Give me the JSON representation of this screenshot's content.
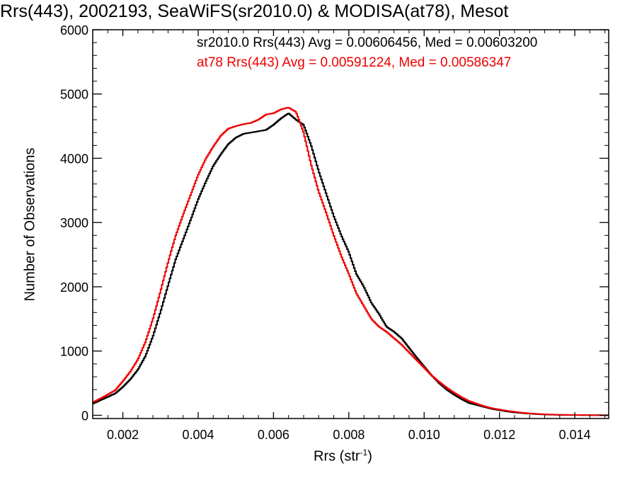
{
  "chart_data": {
    "type": "line",
    "title": "Rrs(443), 2002193, SeaWiFS(sr2010.0) & MODISA(at78), Mesot",
    "xlabel_main": "Rrs (str",
    "xlabel_sup": "-1",
    "xlabel_close": ")",
    "ylabel": "Number of Observations",
    "xlim": [
      0.0012,
      0.0149
    ],
    "ylim": [
      -50,
      6000
    ],
    "x_ticks": [
      0.002,
      0.004,
      0.006,
      0.008,
      0.01,
      0.012,
      0.014
    ],
    "x_tick_labels": [
      "0.002",
      "0.004",
      "0.006",
      "0.008",
      "0.010",
      "0.012",
      "0.014"
    ],
    "y_ticks": [
      0,
      1000,
      2000,
      3000,
      4000,
      5000,
      6000
    ],
    "y_tick_labels": [
      "0",
      "1000",
      "2000",
      "3000",
      "4000",
      "5000",
      "6000"
    ],
    "grid": false,
    "legend_position": "top-right",
    "series": [
      {
        "legend": "sr2010.0 Rrs(443) Avg = 0.00606456, Med = 0.00603200",
        "color": "#000000",
        "x": [
          0.0012,
          0.0015,
          0.0018,
          0.002,
          0.0022,
          0.0024,
          0.0026,
          0.0028,
          0.003,
          0.0032,
          0.0034,
          0.0036,
          0.0038,
          0.004,
          0.0042,
          0.0044,
          0.0046,
          0.0048,
          0.005,
          0.0052,
          0.0054,
          0.0056,
          0.0058,
          0.006,
          0.0062,
          0.0064,
          0.0066,
          0.0068,
          0.007,
          0.0072,
          0.0074,
          0.0076,
          0.0078,
          0.008,
          0.0082,
          0.0084,
          0.0086,
          0.0088,
          0.009,
          0.0092,
          0.0094,
          0.0096,
          0.0098,
          0.01,
          0.0102,
          0.0104,
          0.0106,
          0.0108,
          0.011,
          0.0112,
          0.0114,
          0.0116,
          0.0118,
          0.012,
          0.0122,
          0.0124,
          0.0126,
          0.0128,
          0.013,
          0.0132,
          0.0134,
          0.0136,
          0.0138,
          0.014,
          0.0142,
          0.0144,
          0.0146,
          0.0149
        ],
        "values": [
          180,
          260,
          340,
          440,
          560,
          710,
          920,
          1230,
          1610,
          2020,
          2420,
          2730,
          3040,
          3360,
          3630,
          3880,
          4060,
          4220,
          4320,
          4380,
          4400,
          4420,
          4440,
          4520,
          4620,
          4700,
          4600,
          4520,
          4200,
          3800,
          3450,
          3100,
          2800,
          2540,
          2200,
          2000,
          1750,
          1580,
          1380,
          1300,
          1200,
          1050,
          900,
          760,
          620,
          500,
          400,
          320,
          250,
          190,
          160,
          130,
          100,
          80,
          60,
          45,
          35,
          25,
          18,
          12,
          9,
          6,
          5,
          4,
          3,
          2,
          2,
          1
        ]
      },
      {
        "legend": "at78 Rrs(443) Avg = 0.00591224, Med = 0.00586347",
        "color": "#ee0000",
        "x": [
          0.0012,
          0.0015,
          0.0018,
          0.002,
          0.0022,
          0.0024,
          0.0026,
          0.0028,
          0.003,
          0.0032,
          0.0034,
          0.0036,
          0.0038,
          0.004,
          0.0042,
          0.0044,
          0.0046,
          0.0048,
          0.005,
          0.0052,
          0.0054,
          0.0056,
          0.0058,
          0.006,
          0.0062,
          0.0064,
          0.0066,
          0.0068,
          0.007,
          0.0072,
          0.0074,
          0.0076,
          0.0078,
          0.008,
          0.0082,
          0.0084,
          0.0086,
          0.0088,
          0.009,
          0.0092,
          0.0094,
          0.0096,
          0.0098,
          0.01,
          0.0102,
          0.0104,
          0.0106,
          0.0108,
          0.011,
          0.0112,
          0.0114,
          0.0116,
          0.0118,
          0.012,
          0.0122,
          0.0124,
          0.0126,
          0.0128,
          0.013,
          0.0132,
          0.0134,
          0.0136,
          0.0138,
          0.014,
          0.0142,
          0.0144,
          0.0146,
          0.0149
        ],
        "values": [
          200,
          290,
          390,
          530,
          680,
          870,
          1140,
          1500,
          1930,
          2380,
          2790,
          3120,
          3430,
          3740,
          3990,
          4180,
          4350,
          4460,
          4500,
          4530,
          4550,
          4600,
          4680,
          4700,
          4760,
          4790,
          4720,
          4400,
          3900,
          3480,
          3150,
          2800,
          2480,
          2200,
          1900,
          1700,
          1500,
          1380,
          1300,
          1200,
          1100,
          980,
          860,
          740,
          620,
          520,
          430,
          350,
          280,
          220,
          180,
          140,
          110,
          90,
          70,
          55,
          40,
          30,
          22,
          16,
          12,
          9,
          7,
          5,
          4,
          3,
          2,
          1
        ]
      }
    ]
  }
}
